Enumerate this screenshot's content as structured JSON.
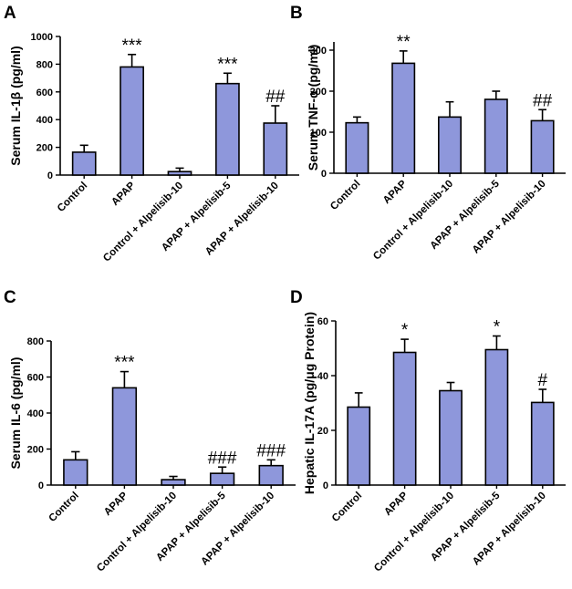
{
  "figure": {
    "colors": {
      "bar": "#8E97DB",
      "axis": "#000000",
      "background": "#ffffff"
    }
  },
  "chart_data": [
    {
      "type": "bar",
      "panel_label": "A",
      "ylabel": "Serum IL-1β (pg/ml)",
      "xlabel": "",
      "ylim": [
        0,
        1000
      ],
      "yticks": [
        "0",
        "200",
        "400",
        "600",
        "800",
        "1000"
      ],
      "ytick_values": [
        0,
        200,
        400,
        600,
        800,
        1000
      ],
      "categories": [
        "Control",
        "APAP",
        "Control + Alpelisib-10",
        "APAP + Alpelisib-5",
        "APAP + Alpelisib-10"
      ],
      "values": [
        165,
        780,
        25,
        660,
        375
      ],
      "errors": [
        50,
        90,
        25,
        75,
        125
      ],
      "annotations": [
        "",
        "***",
        "",
        "***",
        "##"
      ]
    },
    {
      "type": "bar",
      "panel_label": "B",
      "ylabel": "Serum TNF-α (pg/ml)",
      "xlabel": "",
      "ylim": [
        0,
        320
      ],
      "yticks": [
        "0",
        "100",
        "200",
        "300"
      ],
      "ytick_values": [
        0,
        100,
        200,
        300
      ],
      "categories": [
        "Control",
        "APAP",
        "Control + Alpelisib-10",
        "APAP + Alpelisib-5",
        "APAP + Alpelisib-10"
      ],
      "values": [
        123,
        268,
        137,
        180,
        128
      ],
      "errors": [
        14,
        30,
        37,
        20,
        27
      ],
      "annotations": [
        "",
        "**",
        "",
        "",
        "##"
      ]
    },
    {
      "type": "bar",
      "panel_label": "C",
      "ylabel": "Serum IL-6 (pg/ml)",
      "xlabel": "",
      "ylim": [
        0,
        800
      ],
      "yticks": [
        "0",
        "200",
        "400",
        "600",
        "800"
      ],
      "ytick_values": [
        0,
        200,
        400,
        600,
        800
      ],
      "categories": [
        "Control",
        "APAP",
        "Control + Alpelisib-10",
        "APAP + Alpelisib-5",
        "APAP + Alpelisib-10"
      ],
      "values": [
        140,
        540,
        30,
        65,
        108
      ],
      "errors": [
        45,
        90,
        18,
        35,
        32
      ],
      "annotations": [
        "",
        "***",
        "",
        "###",
        "###"
      ]
    },
    {
      "type": "bar",
      "panel_label": "D",
      "ylabel": "Hepatic IL-17A (pg/μg Protein)",
      "xlabel": "",
      "ylim": [
        0,
        60
      ],
      "yticks": [
        "0",
        "20",
        "40",
        "60"
      ],
      "ytick_values": [
        0,
        20,
        40,
        60
      ],
      "categories": [
        "Control",
        "APAP",
        "Control + Alpelisib-10",
        "APAP + Alpelisib-5",
        "APAP + Alpelisib-10"
      ],
      "values": [
        28.5,
        48.5,
        34.5,
        49.5,
        30.2
      ],
      "errors": [
        5.2,
        4.8,
        3.0,
        5.0,
        4.8
      ],
      "annotations": [
        "",
        "*",
        "",
        "*",
        "#"
      ]
    }
  ]
}
